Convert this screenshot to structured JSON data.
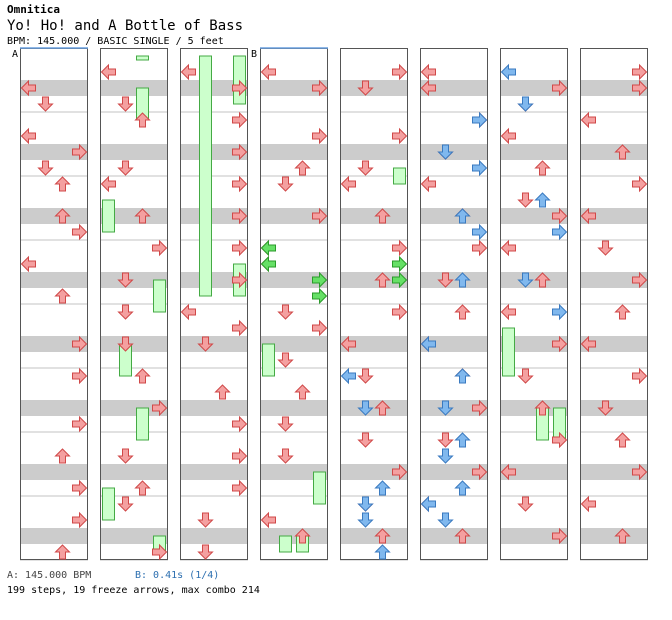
{
  "header": {
    "artist": "Omnitica",
    "title": "Yo! Ho! and A Bottle of Bass",
    "meta": "BPM: 145.000 / BASIC SINGLE / 5 feet"
  },
  "markers": {
    "a": "A",
    "b": "B"
  },
  "footer": {
    "bpm_a": "A: 145.000 BPM",
    "bpm_b": "B: 0.41s (1/4)",
    "summary": "199 steps, 19 freeze arrows, max combo 214"
  },
  "colors": {
    "red_arrow": "#f4a0a0",
    "red_arrow_edge": "#d04848",
    "blue_arrow": "#80b8ee",
    "green_arrow": "#66e066",
    "freeze_body": "#ccffcc",
    "freeze_edge": "#44aa44",
    "stripe": "#cccccc",
    "background": "#ffffff"
  },
  "chart_data": {
    "type": "step-chart",
    "lanes": [
      "left",
      "down",
      "up",
      "right"
    ],
    "measures_per_column": 8,
    "columns": 8,
    "notes": [
      [
        0,
        0,
        2,
        0
      ],
      [
        0,
        0,
        3,
        1
      ],
      [
        0,
        1,
        5,
        0
      ],
      [
        0,
        1,
        6,
        3
      ],
      [
        0,
        2,
        7,
        1
      ],
      [
        0,
        2,
        8,
        2
      ],
      [
        0,
        3,
        10,
        2
      ],
      [
        0,
        3,
        11,
        3
      ],
      [
        0,
        4,
        13,
        0
      ],
      [
        0,
        4,
        15,
        2
      ],
      [
        0,
        5,
        18,
        3
      ],
      [
        0,
        6,
        20,
        3
      ],
      [
        0,
        7,
        23,
        3
      ],
      [
        0,
        9,
        25,
        2
      ],
      [
        0,
        9,
        27,
        3
      ],
      [
        0,
        10,
        29,
        3
      ],
      [
        0,
        11,
        31,
        2
      ],
      [
        1,
        0,
        1,
        0
      ],
      [
        1,
        0,
        3,
        1
      ],
      [
        1,
        1,
        4,
        2
      ],
      [
        1,
        1,
        7,
        1
      ],
      [
        1,
        2,
        8,
        0
      ],
      [
        1,
        2,
        10,
        2
      ],
      [
        1,
        3,
        12,
        3
      ],
      [
        1,
        3,
        14,
        1
      ],
      [
        1,
        4,
        16,
        1
      ],
      [
        1,
        5,
        18,
        1
      ],
      [
        1,
        5,
        20,
        2
      ],
      [
        1,
        6,
        22,
        3
      ],
      [
        1,
        7,
        25,
        1
      ],
      [
        1,
        7,
        27,
        2
      ],
      [
        1,
        8,
        28,
        1
      ],
      [
        1,
        8,
        31,
        3
      ],
      [
        2,
        0,
        1,
        0
      ],
      [
        2,
        0,
        2,
        3
      ],
      [
        2,
        1,
        4,
        3
      ],
      [
        2,
        1,
        6,
        3
      ],
      [
        2,
        2,
        8,
        3
      ],
      [
        2,
        2,
        10,
        3
      ],
      [
        2,
        3,
        12,
        3
      ],
      [
        2,
        3,
        14,
        3
      ],
      [
        2,
        4,
        16,
        0
      ],
      [
        2,
        4,
        17,
        3
      ],
      [
        2,
        5,
        18,
        1
      ],
      [
        2,
        5,
        21,
        2
      ],
      [
        2,
        6,
        23,
        3
      ],
      [
        2,
        7,
        25,
        3
      ],
      [
        2,
        7,
        27,
        3
      ],
      [
        2,
        8,
        29,
        1
      ],
      [
        2,
        8,
        31,
        1
      ],
      [
        3,
        0,
        1,
        0
      ],
      [
        3,
        0,
        2,
        3
      ],
      [
        3,
        1,
        5,
        3
      ],
      [
        3,
        1,
        7,
        2
      ],
      [
        3,
        2,
        8,
        1
      ],
      [
        3,
        2,
        10,
        3
      ],
      [
        3,
        3,
        12,
        0
      ],
      [
        3,
        3,
        13,
        0
      ],
      [
        3,
        4,
        16,
        1
      ],
      [
        3,
        4,
        17,
        3
      ],
      [
        3,
        5,
        19,
        1
      ],
      [
        3,
        6,
        21,
        2
      ],
      [
        3,
        6,
        23,
        1
      ],
      [
        3,
        7,
        25,
        1
      ],
      [
        3,
        8,
        29,
        0
      ],
      [
        3,
        9,
        30,
        2
      ],
      [
        4,
        0,
        1,
        3
      ],
      [
        4,
        0,
        2,
        1
      ],
      [
        4,
        1,
        5,
        3
      ],
      [
        4,
        1,
        7,
        1
      ],
      [
        4,
        2,
        8,
        0
      ],
      [
        4,
        2,
        10,
        2
      ],
      [
        4,
        3,
        12,
        3
      ],
      [
        4,
        3,
        14,
        2
      ],
      [
        4,
        4,
        16,
        3
      ],
      [
        4,
        4,
        18,
        0
      ],
      [
        4,
        5,
        20,
        1
      ],
      [
        4,
        5,
        22,
        2
      ],
      [
        4,
        6,
        24,
        1
      ],
      [
        4,
        6,
        26,
        3
      ],
      [
        4,
        7,
        28,
        1
      ],
      [
        4,
        7,
        30,
        2
      ],
      [
        5,
        0,
        1,
        0
      ],
      [
        5,
        0,
        2,
        0
      ],
      [
        5,
        1,
        4,
        3
      ],
      [
        5,
        1,
        6,
        1
      ],
      [
        5,
        2,
        8,
        0
      ],
      [
        5,
        2,
        10,
        2
      ],
      [
        5,
        3,
        12,
        3
      ],
      [
        5,
        3,
        14,
        1
      ],
      [
        5,
        4,
        16,
        2
      ],
      [
        5,
        4,
        18,
        0
      ],
      [
        5,
        5,
        20,
        2
      ],
      [
        5,
        5,
        22,
        3
      ],
      [
        5,
        6,
        24,
        1
      ],
      [
        5,
        6,
        26,
        3
      ],
      [
        5,
        7,
        28,
        0
      ],
      [
        5,
        7,
        30,
        2
      ],
      [
        6,
        0,
        2,
        3
      ],
      [
        6,
        0,
        3,
        1
      ],
      [
        6,
        1,
        5,
        0
      ],
      [
        6,
        1,
        7,
        2
      ],
      [
        6,
        2,
        9,
        1
      ],
      [
        6,
        2,
        10,
        3
      ],
      [
        6,
        3,
        12,
        0
      ],
      [
        6,
        3,
        14,
        2
      ],
      [
        6,
        4,
        16,
        0
      ],
      [
        6,
        4,
        18,
        3
      ],
      [
        6,
        5,
        20,
        1
      ],
      [
        6,
        5,
        22,
        2
      ],
      [
        6,
        6,
        24,
        3
      ],
      [
        6,
        6,
        26,
        0
      ],
      [
        6,
        7,
        28,
        1
      ],
      [
        6,
        7,
        30,
        3
      ],
      [
        7,
        0,
        1,
        3
      ],
      [
        7,
        0,
        2,
        3
      ],
      [
        7,
        1,
        4,
        0
      ],
      [
        7,
        1,
        6,
        2
      ],
      [
        7,
        2,
        8,
        3
      ],
      [
        7,
        2,
        10,
        0
      ],
      [
        7,
        3,
        12,
        1
      ],
      [
        7,
        3,
        14,
        3
      ],
      [
        7,
        4,
        16,
        2
      ],
      [
        7,
        4,
        18,
        0
      ],
      [
        7,
        5,
        20,
        3
      ],
      [
        7,
        5,
        22,
        1
      ],
      [
        7,
        6,
        24,
        2
      ],
      [
        7,
        6,
        26,
        3
      ],
      [
        7,
        7,
        28,
        0
      ],
      [
        7,
        7,
        30,
        2
      ]
    ],
    "freezes": [
      [
        1,
        0,
        0,
        2
      ],
      [
        1,
        2,
        4,
        2
      ],
      [
        1,
        9,
        11,
        0
      ],
      [
        1,
        14,
        16,
        3
      ],
      [
        1,
        18,
        20,
        1
      ],
      [
        1,
        22,
        24,
        2
      ],
      [
        1,
        27,
        29,
        0
      ],
      [
        1,
        30,
        31,
        3
      ],
      [
        2,
        0,
        15,
        1
      ],
      [
        2,
        0,
        3,
        3
      ],
      [
        2,
        13,
        15,
        3
      ],
      [
        3,
        18,
        20,
        0
      ],
      [
        3,
        26,
        28,
        3
      ],
      [
        3,
        30,
        31,
        1
      ],
      [
        3,
        30,
        31,
        2
      ],
      [
        4,
        7,
        8,
        3
      ],
      [
        6,
        17,
        20,
        0
      ],
      [
        6,
        22,
        24,
        2
      ],
      [
        6,
        22,
        24,
        3
      ]
    ],
    "green_notes": [
      [
        3,
        12,
        0
      ],
      [
        3,
        13,
        0
      ],
      [
        3,
        14,
        3
      ],
      [
        3,
        15,
        3
      ],
      [
        4,
        13,
        3
      ],
      [
        4,
        14,
        3
      ]
    ],
    "blue_notes": [
      [
        4,
        20,
        0
      ],
      [
        4,
        22,
        1
      ],
      [
        4,
        27,
        2
      ],
      [
        4,
        28,
        1
      ],
      [
        4,
        29,
        1
      ],
      [
        4,
        31,
        2
      ],
      [
        5,
        4,
        3
      ],
      [
        5,
        6,
        1
      ],
      [
        5,
        7,
        3
      ],
      [
        5,
        10,
        2
      ],
      [
        5,
        11,
        3
      ],
      [
        5,
        14,
        2
      ],
      [
        5,
        18,
        0
      ],
      [
        5,
        20,
        2
      ],
      [
        5,
        22,
        1
      ],
      [
        5,
        24,
        2
      ],
      [
        5,
        25,
        1
      ],
      [
        5,
        27,
        2
      ],
      [
        5,
        28,
        0
      ],
      [
        5,
        29,
        1
      ],
      [
        6,
        1,
        0
      ],
      [
        6,
        3,
        1
      ],
      [
        6,
        9,
        2
      ],
      [
        6,
        11,
        3
      ],
      [
        6,
        14,
        1
      ],
      [
        6,
        16,
        3
      ]
    ]
  }
}
